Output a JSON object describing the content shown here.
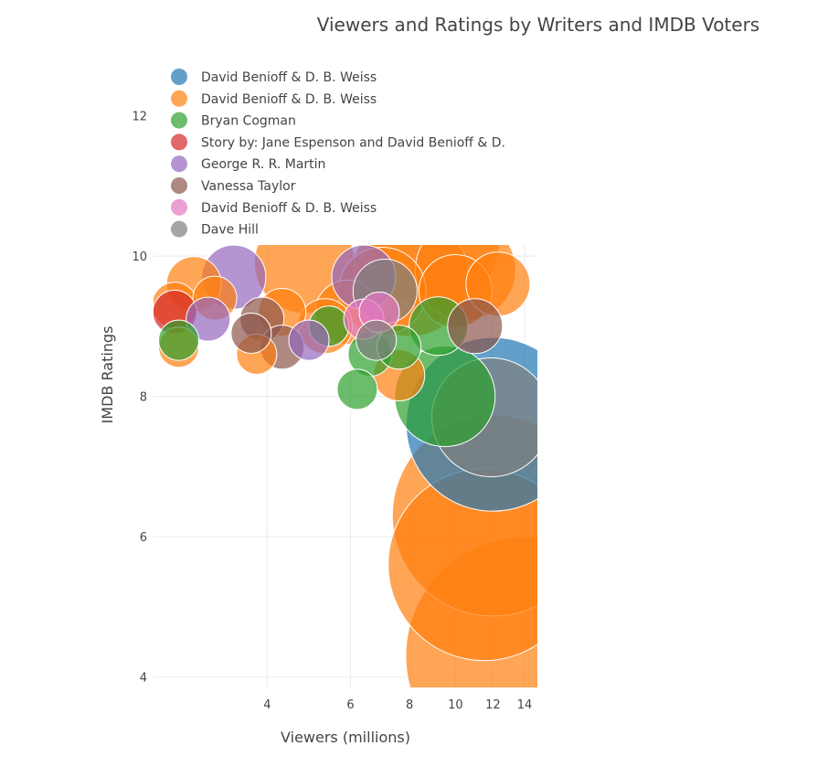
{
  "chart_data": {
    "type": "scatter",
    "title": "Viewers and Ratings by Writers and IMDB Voters",
    "xlabel": "Viewers (millions)",
    "ylabel": "IMDB Ratings",
    "x_scale": "log",
    "x_ticks": [
      4,
      6,
      8,
      10,
      12,
      14
    ],
    "y_ticks": [
      4,
      6,
      8,
      10,
      12
    ],
    "xlim": [
      2.3,
      14.9
    ],
    "ylim": [
      3,
      13
    ],
    "grid": true,
    "legend_position": "top-left",
    "series": [
      {
        "name": "David Benioff & D. B. Weiss",
        "color": "#1f77b4",
        "points": [
          {
            "x": 12.0,
            "y": 7.6,
            "size": 95
          }
        ]
      },
      {
        "name": "David Benioff & D. B. Weiss",
        "color": "#ff7f0e",
        "points": [
          {
            "x": 2.55,
            "y": 9.3,
            "size": 25
          },
          {
            "x": 2.6,
            "y": 8.7,
            "size": 22
          },
          {
            "x": 2.8,
            "y": 9.6,
            "size": 30
          },
          {
            "x": 3.1,
            "y": 9.4,
            "size": 24
          },
          {
            "x": 3.8,
            "y": 8.6,
            "size": 22
          },
          {
            "x": 4.3,
            "y": 9.2,
            "size": 26
          },
          {
            "x": 4.8,
            "y": 9.9,
            "size": 55
          },
          {
            "x": 5.3,
            "y": 9.0,
            "size": 30
          },
          {
            "x": 5.9,
            "y": 9.2,
            "size": 35
          },
          {
            "x": 7.0,
            "y": 9.5,
            "size": 48
          },
          {
            "x": 7.6,
            "y": 8.3,
            "size": 28
          },
          {
            "x": 8.0,
            "y": 9.7,
            "size": 65
          },
          {
            "x": 9.0,
            "y": 10.2,
            "size": 72
          },
          {
            "x": 10.0,
            "y": 9.5,
            "size": 40
          },
          {
            "x": 10.5,
            "y": 9.8,
            "size": 55
          },
          {
            "x": 12.3,
            "y": 9.6,
            "size": 35
          },
          {
            "x": 12.0,
            "y": 6.3,
            "size": 110
          },
          {
            "x": 11.5,
            "y": 5.6,
            "size": 105
          },
          {
            "x": 14.0,
            "y": 4.3,
            "size": 130
          }
        ]
      },
      {
        "name": "Bryan Cogman",
        "color": "#2ca02c",
        "points": [
          {
            "x": 2.6,
            "y": 8.8,
            "size": 22
          },
          {
            "x": 5.4,
            "y": 9.0,
            "size": 22
          },
          {
            "x": 6.2,
            "y": 8.1,
            "size": 22
          },
          {
            "x": 6.6,
            "y": 8.6,
            "size": 24
          },
          {
            "x": 7.6,
            "y": 8.7,
            "size": 24
          },
          {
            "x": 9.2,
            "y": 9.0,
            "size": 32
          },
          {
            "x": 9.5,
            "y": 8.0,
            "size": 55
          }
        ]
      },
      {
        "name": "Story by: Jane Espenson and David Benioff & D.",
        "color": "#d62728",
        "points": [
          {
            "x": 2.55,
            "y": 9.2,
            "size": 24
          }
        ]
      },
      {
        "name": "George R. R. Martin",
        "color": "#9467bd",
        "points": [
          {
            "x": 3.0,
            "y": 9.1,
            "size": 24
          },
          {
            "x": 3.4,
            "y": 9.7,
            "size": 35
          },
          {
            "x": 4.9,
            "y": 8.8,
            "size": 22
          },
          {
            "x": 6.4,
            "y": 9.7,
            "size": 35
          }
        ]
      },
      {
        "name": "Vanessa Taylor",
        "color": "#8c564b",
        "points": [
          {
            "x": 3.7,
            "y": 8.9,
            "size": 22
          },
          {
            "x": 3.9,
            "y": 9.1,
            "size": 24
          },
          {
            "x": 4.3,
            "y": 8.7,
            "size": 24
          },
          {
            "x": 11.0,
            "y": 9.0,
            "size": 30
          }
        ]
      },
      {
        "name": "David Benioff & D. B. Weiss",
        "color": "#e377c2",
        "points": [
          {
            "x": 6.4,
            "y": 9.1,
            "size": 22
          },
          {
            "x": 6.9,
            "y": 9.2,
            "size": 22
          }
        ]
      },
      {
        "name": "Dave Hill",
        "color": "#7f7f7f",
        "points": [
          {
            "x": 7.1,
            "y": 9.5,
            "size": 35
          },
          {
            "x": 6.8,
            "y": 8.8,
            "size": 22
          },
          {
            "x": 11.9,
            "y": 7.7,
            "size": 65
          }
        ]
      }
    ]
  }
}
